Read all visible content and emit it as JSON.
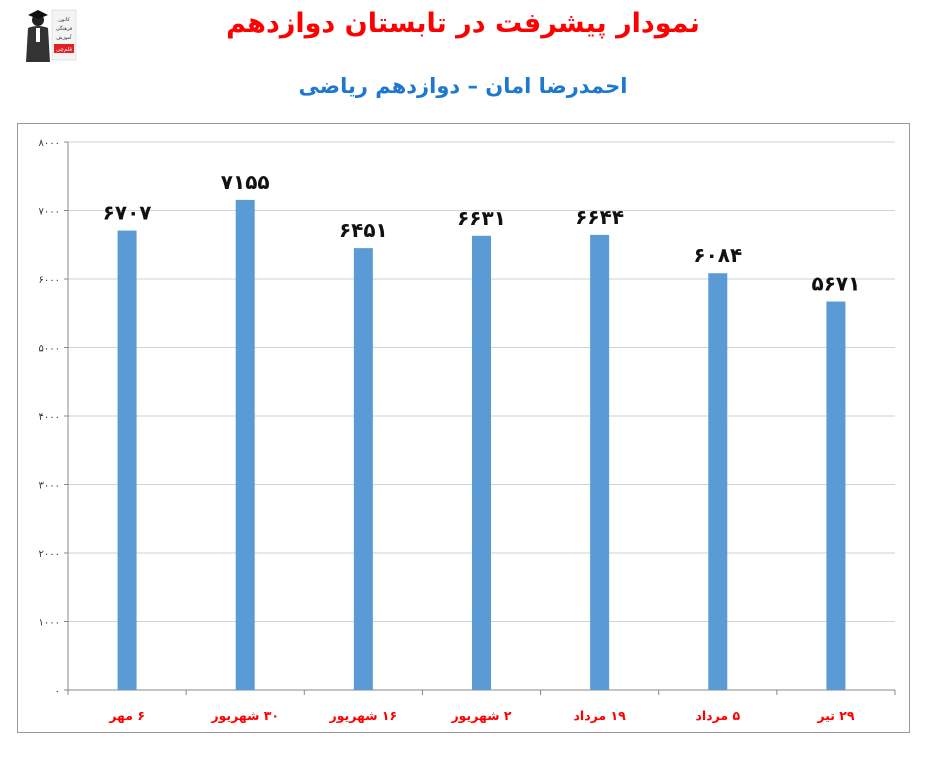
{
  "page": {
    "title": "نمودار پیشرفت در تابستان دوازدهم",
    "subtitle": "احمدرضا امان – دوازدهم ریاضی",
    "logo": {
      "icon": "graduate-logo-icon",
      "text": "کانون فرهنگی آموزش",
      "badge": "قلم‌چی"
    }
  },
  "colors": {
    "title": "#ff0000",
    "subtitle": "#1f78d0",
    "bar": "#5b9bd5",
    "category": "#ff0000",
    "grid": "#c8d3e3"
  },
  "chart_data": {
    "type": "bar",
    "categories": [
      "۲۹ تیر",
      "۵ مرداد",
      "۱۹ مرداد",
      "۲ شهریور",
      "۱۶ شهریور",
      "۳۰ شهریور",
      "۶ مهر"
    ],
    "values": [
      5671,
      6084,
      6644,
      6631,
      6451,
      7155,
      6707
    ],
    "data_labels": [
      "۵۶۷۱",
      "۶۰۸۴",
      "۶۶۴۴",
      "۶۶۳۱",
      "۶۴۵۱",
      "۷۱۵۵",
      "۶۷۰۷"
    ],
    "title": "نمودار پیشرفت در تابستان دوازدهم",
    "subtitle": "احمدرضا امان – دوازدهم ریاضی",
    "xlabel": "",
    "ylabel": "",
    "ylim": [
      0,
      8000
    ],
    "yticks": [
      0,
      1000,
      2000,
      3000,
      4000,
      5000,
      6000,
      7000,
      8000
    ],
    "ytick_labels": [
      "۰",
      "۱۰۰۰",
      "۲۰۰۰",
      "۳۰۰۰",
      "۴۰۰۰",
      "۵۰۰۰",
      "۶۰۰۰",
      "۷۰۰۰",
      "۸۰۰۰"
    ],
    "grid": true,
    "legend": "none"
  }
}
